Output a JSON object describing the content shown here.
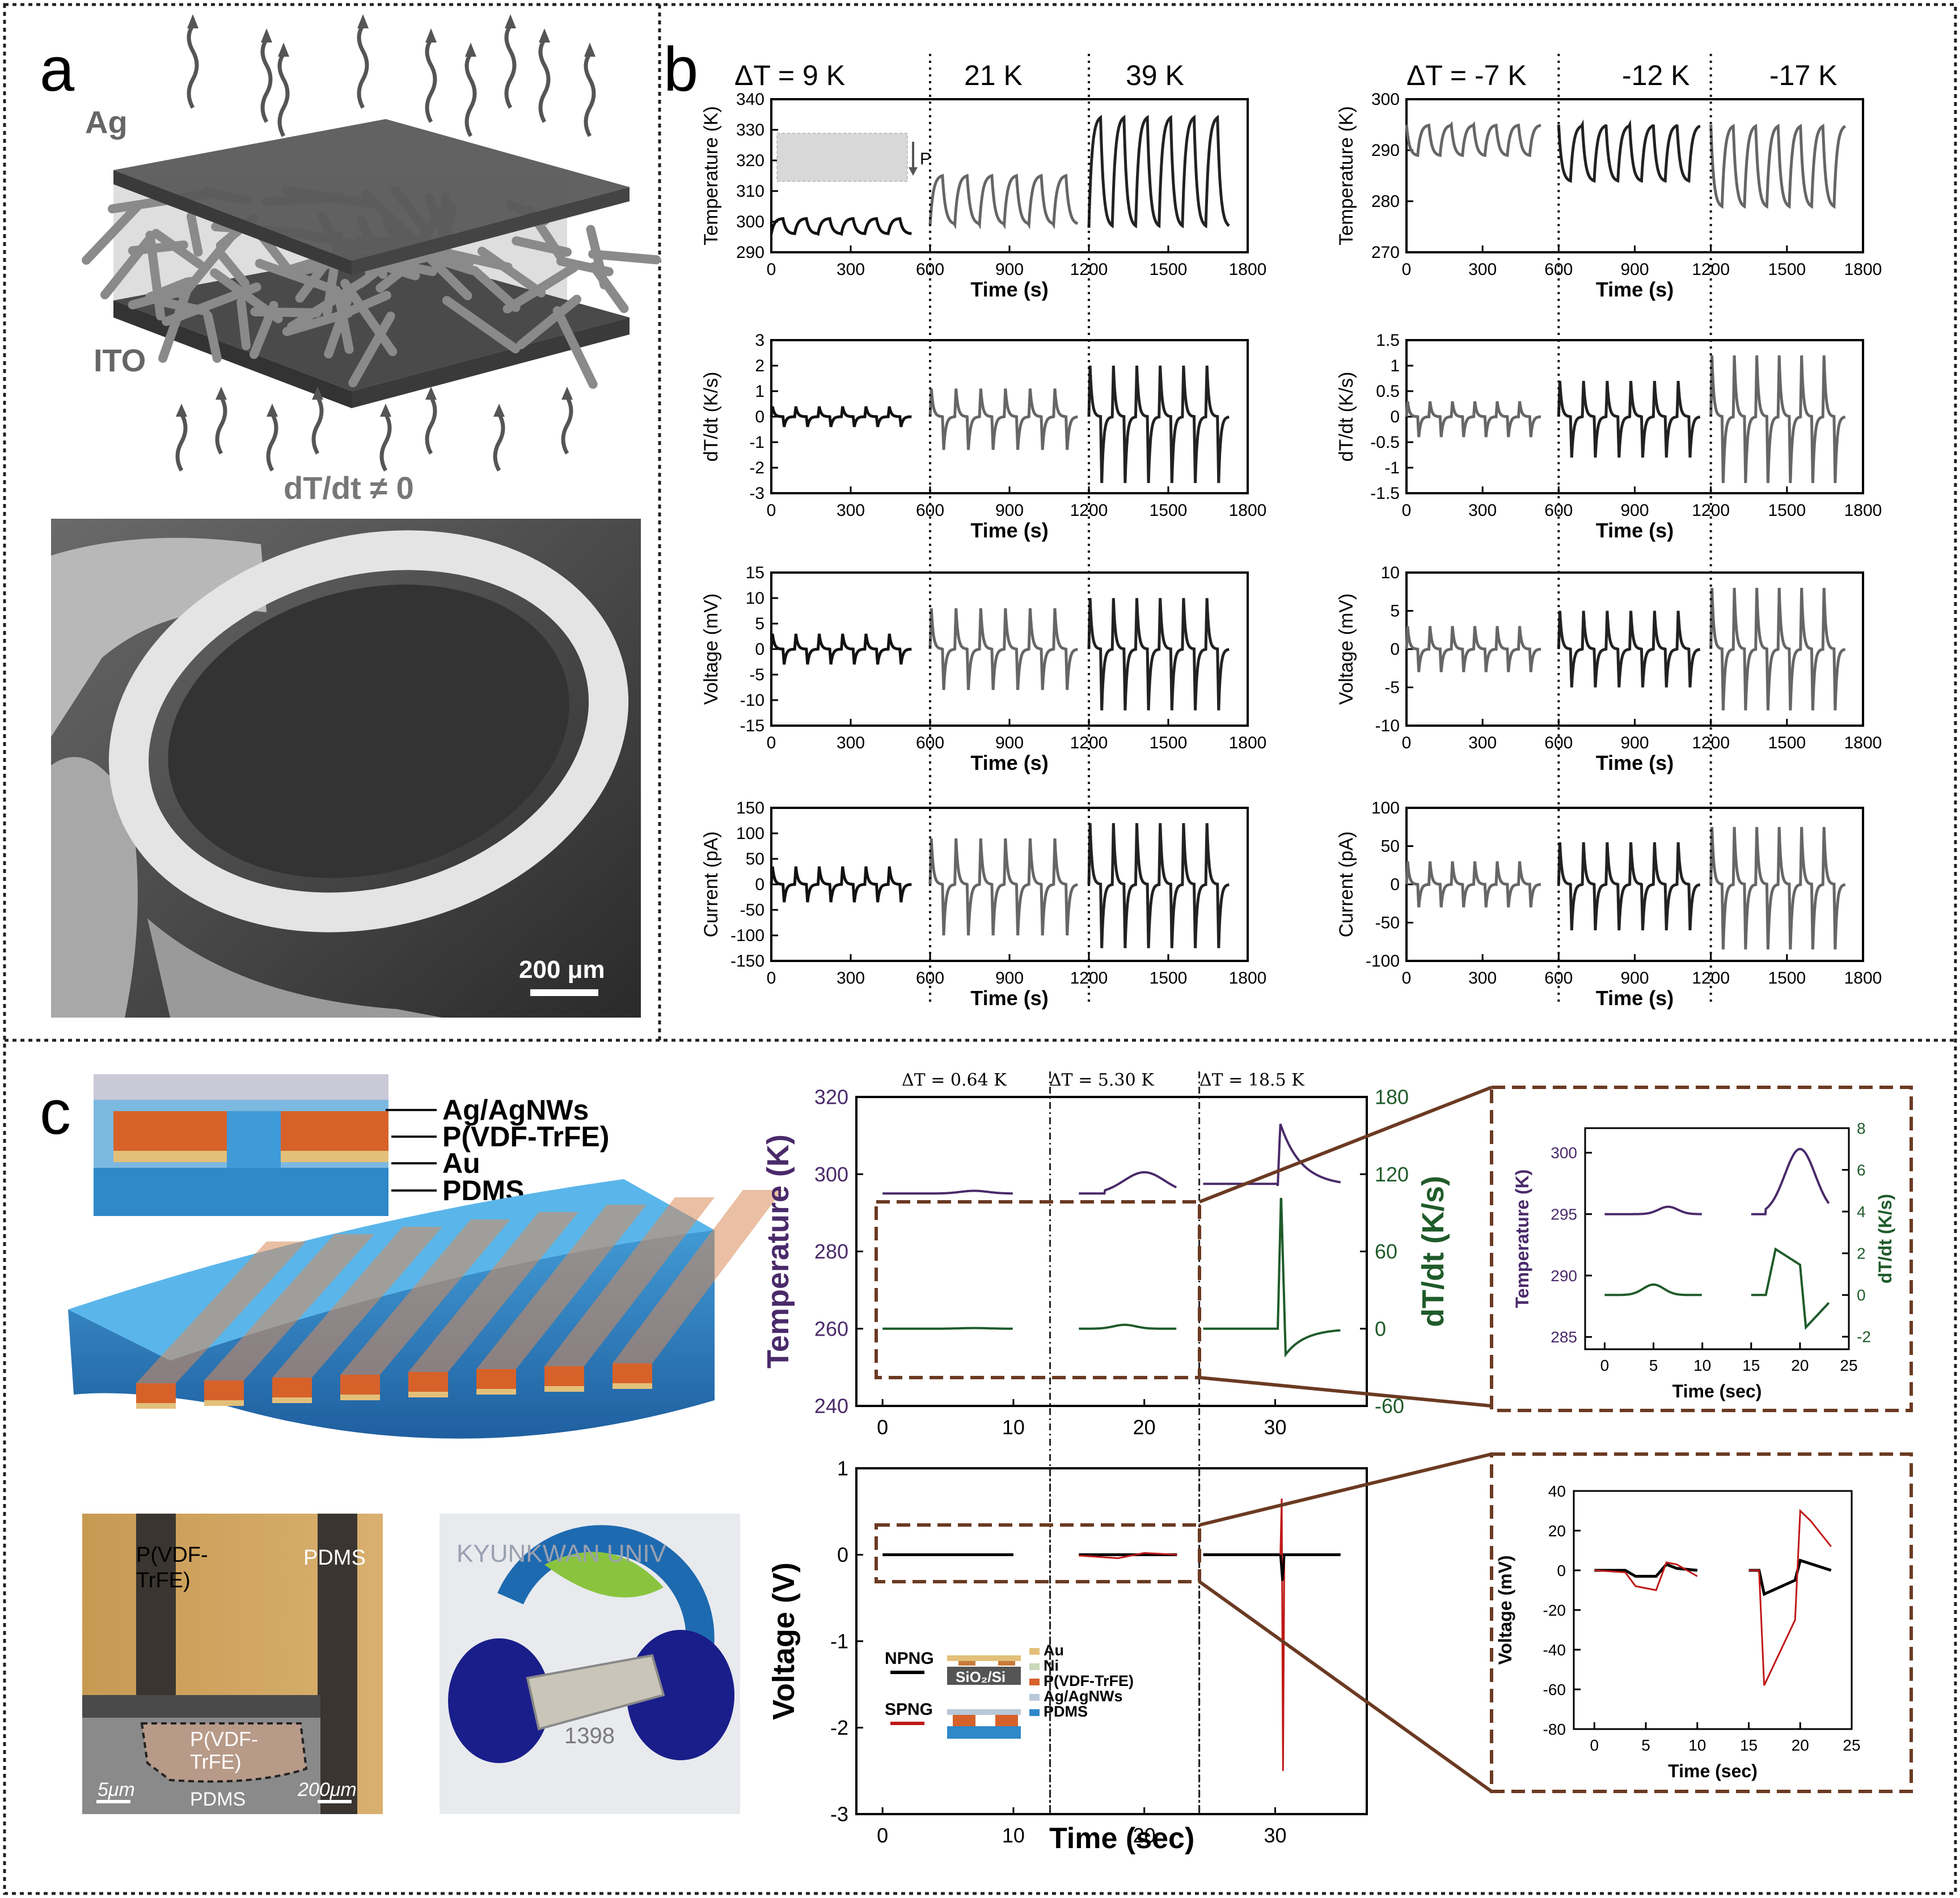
{
  "panels": {
    "a": "a",
    "b": "b",
    "c": "c"
  },
  "panel_a": {
    "top_label": "Ag",
    "bottom_label": "ITO",
    "equation": "dT/dt ≠ 0",
    "scale_bar": "200 μm"
  },
  "panel_b": {
    "left_headers": [
      "ΔT = 9 K",
      "21 K",
      "39 K"
    ],
    "right_headers": [
      "ΔT = -7 K",
      "-12 K",
      "-17 K"
    ],
    "inset_label": "P"
  },
  "panel_c": {
    "layers": [
      "Ag/AgNWs",
      "P(VDF-TrFE)",
      "Au",
      "PDMS"
    ],
    "micro_labels": {
      "top_left": "P(VDF-",
      "top_left2": "TrFE)",
      "top_right": "PDMS",
      "inset": "P(VDF-",
      "inset2": "TrFE)",
      "scale_small": "5μm",
      "bottom": "PDMS",
      "scale_big": "200μm"
    },
    "photo_text": "KYUNKWAN UNIV",
    "photo_year": "1398",
    "headers": [
      "ΔT = 0.64 K",
      "ΔT = 5.30 K",
      "ΔT = 18.5 K"
    ],
    "x_title": "Time (sec)",
    "legend": {
      "npng": "NPNG",
      "spng": "SPNG",
      "substrate": "SiO₂/Si",
      "items": [
        "Au",
        "Ni",
        "P(VDF-TrFE)",
        "Ag/AgNWs",
        "PDMS"
      ]
    }
  },
  "chart_data": [
    {
      "id": "b_temp_left",
      "type": "line",
      "xlabel": "Time (s)",
      "ylabel": "Temperature (K)",
      "xlim": [
        0,
        1800
      ],
      "ylim": [
        290,
        340
      ],
      "xticks": [
        0,
        300,
        600,
        900,
        1200,
        1500,
        1800
      ],
      "yticks": [
        290,
        300,
        310,
        320,
        330,
        340
      ],
      "segments": [
        {
          "deltaT": "9 K",
          "range": [
            0,
            530
          ],
          "min": 296,
          "max": 301
        },
        {
          "deltaT": "21 K",
          "range": [
            600,
            1160
          ],
          "min": 299,
          "max": 315
        },
        {
          "deltaT": "39 K",
          "range": [
            1200,
            1730
          ],
          "min": 298,
          "max": 334
        }
      ]
    },
    {
      "id": "b_temp_right",
      "type": "line",
      "xlabel": "Time (s)",
      "ylabel": "Temperature (K)",
      "xlim": [
        0,
        1800
      ],
      "ylim": [
        270,
        300
      ],
      "xticks": [
        0,
        300,
        600,
        900,
        1200,
        1500,
        1800
      ],
      "yticks": [
        270,
        280,
        290,
        300
      ],
      "segments": [
        {
          "deltaT": "-7 K",
          "range": [
            0,
            530
          ],
          "min": 289,
          "max": 295
        },
        {
          "deltaT": "-12 K",
          "range": [
            600,
            1160
          ],
          "min": 284,
          "max": 295
        },
        {
          "deltaT": "-17 K",
          "range": [
            1200,
            1730
          ],
          "min": 279,
          "max": 295
        }
      ]
    },
    {
      "id": "b_dtdt_left",
      "type": "line",
      "xlabel": "Time (s)",
      "ylabel": "dT/dt (K/s)",
      "xlim": [
        0,
        1800
      ],
      "ylim": [
        -3,
        3
      ],
      "xticks": [
        0,
        300,
        600,
        900,
        1200,
        1500,
        1800
      ],
      "yticks": [
        -3,
        -2,
        -1,
        0,
        1,
        2,
        3
      ],
      "segments": [
        {
          "range": [
            0,
            530
          ],
          "min": -0.4,
          "max": 0.4
        },
        {
          "range": [
            600,
            1160
          ],
          "min": -1.3,
          "max": 1.1
        },
        {
          "range": [
            1200,
            1730
          ],
          "min": -2.6,
          "max": 2.0
        }
      ]
    },
    {
      "id": "b_dtdt_right",
      "type": "line",
      "xlabel": "Time (s)",
      "ylabel": "dT/dt (K/s)",
      "xlim": [
        0,
        1800
      ],
      "ylim": [
        -1.5,
        1.5
      ],
      "xticks": [
        0,
        300,
        600,
        900,
        1200,
        1500,
        1800
      ],
      "yticks": [
        -1.5,
        -1.0,
        -0.5,
        0.0,
        0.5,
        1.0,
        1.5
      ],
      "segments": [
        {
          "range": [
            0,
            530
          ],
          "min": -0.4,
          "max": 0.3
        },
        {
          "range": [
            600,
            1160
          ],
          "min": -0.8,
          "max": 0.7
        },
        {
          "range": [
            1200,
            1730
          ],
          "min": -1.3,
          "max": 1.2
        }
      ]
    },
    {
      "id": "b_volt_left",
      "type": "line",
      "xlabel": "Time (s)",
      "ylabel": "Voltage (mV)",
      "xlim": [
        0,
        1800
      ],
      "ylim": [
        -15,
        15
      ],
      "xticks": [
        0,
        300,
        600,
        900,
        1200,
        1500,
        1800
      ],
      "yticks": [
        -15,
        -10,
        -5,
        0,
        5,
        10,
        15
      ],
      "segments": [
        {
          "range": [
            0,
            530
          ],
          "min": -3,
          "max": 3
        },
        {
          "range": [
            600,
            1160
          ],
          "min": -8,
          "max": 8
        },
        {
          "range": [
            1200,
            1730
          ],
          "min": -12,
          "max": 10
        }
      ]
    },
    {
      "id": "b_volt_right",
      "type": "line",
      "xlabel": "Time (s)",
      "ylabel": "Voltage (mV)",
      "xlim": [
        0,
        1800
      ],
      "ylim": [
        -10,
        10
      ],
      "xticks": [
        0,
        300,
        600,
        900,
        1200,
        1500,
        1800
      ],
      "yticks": [
        -10,
        -5,
        0,
        5,
        10
      ],
      "segments": [
        {
          "range": [
            0,
            530
          ],
          "min": -3,
          "max": 3
        },
        {
          "range": [
            600,
            1160
          ],
          "min": -5,
          "max": 5
        },
        {
          "range": [
            1200,
            1730
          ],
          "min": -8,
          "max": 8
        }
      ]
    },
    {
      "id": "b_curr_left",
      "type": "line",
      "xlabel": "Time (s)",
      "ylabel": "Current (pA)",
      "xlim": [
        0,
        1800
      ],
      "ylim": [
        -150,
        150
      ],
      "xticks": [
        0,
        300,
        600,
        900,
        1200,
        1500,
        1800
      ],
      "yticks": [
        -150,
        -100,
        -50,
        0,
        50,
        100,
        150
      ],
      "segments": [
        {
          "range": [
            0,
            530
          ],
          "min": -35,
          "max": 35
        },
        {
          "range": [
            600,
            1160
          ],
          "min": -100,
          "max": 90
        },
        {
          "range": [
            1200,
            1730
          ],
          "min": -125,
          "max": 120
        }
      ]
    },
    {
      "id": "b_curr_right",
      "type": "line",
      "xlabel": "Time (s)",
      "ylabel": "Current (pA)",
      "xlim": [
        0,
        1800
      ],
      "ylim": [
        -100,
        100
      ],
      "xticks": [
        0,
        300,
        600,
        900,
        1200,
        1500,
        1800
      ],
      "yticks": [
        -100,
        -50,
        0,
        50,
        100
      ],
      "segments": [
        {
          "range": [
            0,
            530
          ],
          "min": -30,
          "max": 30
        },
        {
          "range": [
            600,
            1160
          ],
          "min": -60,
          "max": 55
        },
        {
          "range": [
            1200,
            1730
          ],
          "min": -85,
          "max": 75
        }
      ]
    },
    {
      "id": "c_main",
      "type": "line",
      "xlabel": "",
      "ylabel": "Temperature (K)",
      "y2label": "dT/dt (K/s)",
      "xlim": [
        -2,
        37
      ],
      "ylim": [
        240,
        320
      ],
      "y2lim": [
        -60,
        180
      ],
      "xticks": [
        0,
        10,
        20,
        30
      ],
      "yticks": [
        240,
        260,
        280,
        300,
        320
      ],
      "y2ticks": [
        -60,
        0,
        60,
        120,
        180
      ],
      "series": [
        {
          "name": "Temperature",
          "color": "#4a2a6a",
          "baseline": 295,
          "peaks": [
            {
              "t": 7,
              "v": 295.7
            },
            {
              "t": 20,
              "v": 300.5
            },
            {
              "t": 30.5,
              "v": 313
            }
          ]
        },
        {
          "name": "dT/dt",
          "color": "#1f5b2a",
          "baseline": 0,
          "peaks": [
            {
              "t": 7,
              "v": 0.5
            },
            {
              "t": 20,
              "v": 2
            },
            {
              "t": 30.4,
              "v": 105
            }
          ]
        }
      ]
    },
    {
      "id": "c_inset_temp",
      "type": "line",
      "xlabel": "Time (sec)",
      "ylabel": "Temperature (K)",
      "y2label": "dT/dt (K/s)",
      "xlim": [
        -2,
        25
      ],
      "ylim": [
        284,
        302
      ],
      "y2lim": [
        -2.6,
        8
      ],
      "xticks": [
        0,
        5,
        10,
        15,
        20,
        25
      ],
      "yticks": [
        285,
        290,
        295,
        300
      ],
      "y2ticks": [
        -2,
        0,
        2,
        4,
        6,
        8
      ],
      "series": [
        {
          "name": "Temperature",
          "baseline": 295,
          "peak": 300.3
        },
        {
          "name": "dT/dt",
          "baseline": 0,
          "peak": 2.2,
          "min": -1.5
        }
      ]
    },
    {
      "id": "c_voltage",
      "type": "line",
      "xlabel": "Time (sec)",
      "ylabel": "Voltage (V)",
      "xlim": [
        -2,
        37
      ],
      "ylim": [
        -3,
        1
      ],
      "xticks": [
        0,
        10,
        20,
        30
      ],
      "yticks": [
        -3,
        -2,
        -1,
        0,
        1
      ],
      "series": [
        {
          "name": "NPNG",
          "color": "#000000",
          "min": -0.3,
          "max": 0.1
        },
        {
          "name": "SPNG",
          "color": "#c01818",
          "min": -2.5,
          "max": 0.65
        }
      ]
    },
    {
      "id": "c_inset_voltage",
      "type": "line",
      "xlabel": "Time (sec)",
      "ylabel": "Voltage (mV)",
      "xlim": [
        -2,
        25
      ],
      "ylim": [
        -80,
        40
      ],
      "xticks": [
        0,
        5,
        10,
        15,
        20,
        25
      ],
      "yticks": [
        -80,
        -60,
        -40,
        -20,
        0,
        20,
        40
      ],
      "series": [
        {
          "name": "NPNG",
          "color": "#000000",
          "min": -12,
          "max": 5
        },
        {
          "name": "SPNG",
          "color": "#c01818",
          "min": -58,
          "max": 30
        }
      ]
    }
  ]
}
